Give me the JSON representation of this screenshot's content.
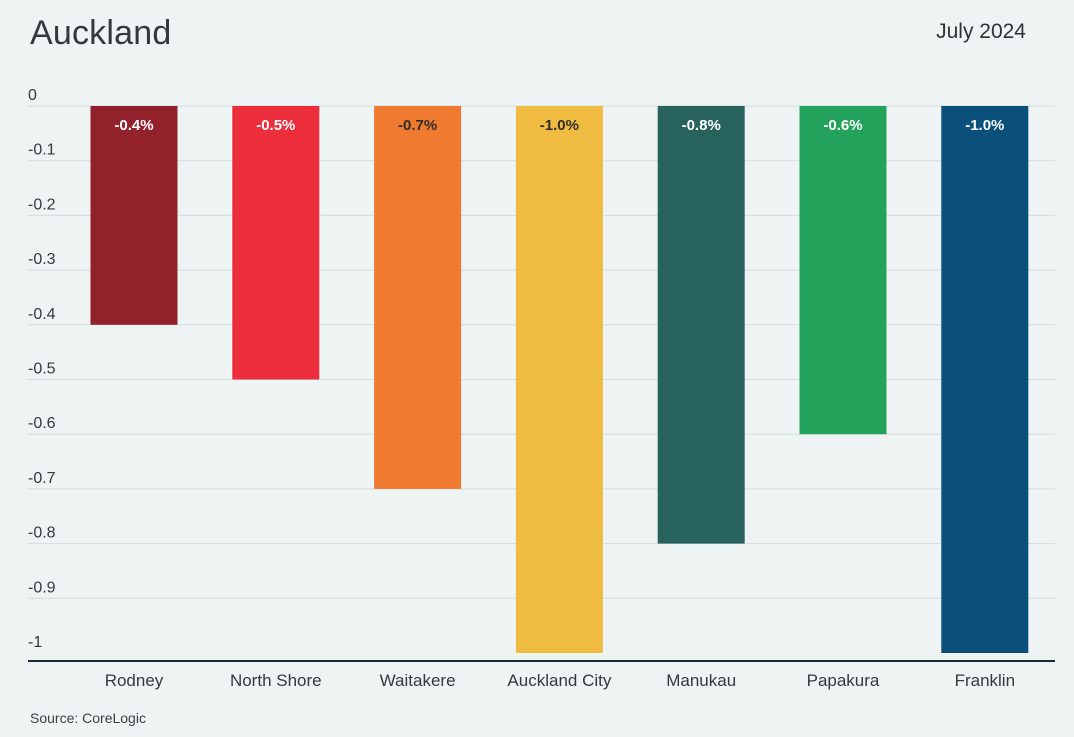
{
  "header": {
    "title": "Auckland",
    "date": "July 2024"
  },
  "footer": {
    "source": "Source: CoreLogic"
  },
  "chart_data": {
    "type": "bar",
    "title": "Auckland",
    "subtitle": "July 2024",
    "xlabel": "",
    "ylabel": "",
    "ylim": [
      -1,
      0
    ],
    "grid": true,
    "y_ticks": [
      0,
      -0.1,
      -0.2,
      -0.3,
      -0.4,
      -0.5,
      -0.6,
      -0.7,
      -0.8,
      -0.9,
      -1
    ],
    "y_tick_labels": [
      "0",
      "-0.1",
      "-0.2",
      "-0.3",
      "-0.4",
      "-0.5",
      "-0.6",
      "-0.7",
      "-0.8",
      "-0.9",
      "-1"
    ],
    "categories": [
      "Rodney",
      "North Shore",
      "Waitakere",
      "Auckland City",
      "Manukau",
      "Papakura",
      "Franklin"
    ],
    "values": [
      -0.4,
      -0.5,
      -0.7,
      -1.0,
      -0.8,
      -0.6,
      -1.0
    ],
    "data_labels": [
      "-0.4%",
      "-0.5%",
      "-0.7%",
      "-1.0%",
      "-0.8%",
      "-0.6%",
      "-1.0%"
    ],
    "colors": [
      "#93212b",
      "#ec2d3b",
      "#ef7a30",
      "#f0bb41",
      "#28625c",
      "#22a25a",
      "#0b4f7b"
    ],
    "label_colors": [
      "#ffffff",
      "#ffffff",
      "#2e2e2e",
      "#2e2e2e",
      "#ffffff",
      "#ffffff",
      "#ffffff"
    ],
    "axis_color": "#1b2a3a",
    "grid_color": "#d2dcdc"
  }
}
